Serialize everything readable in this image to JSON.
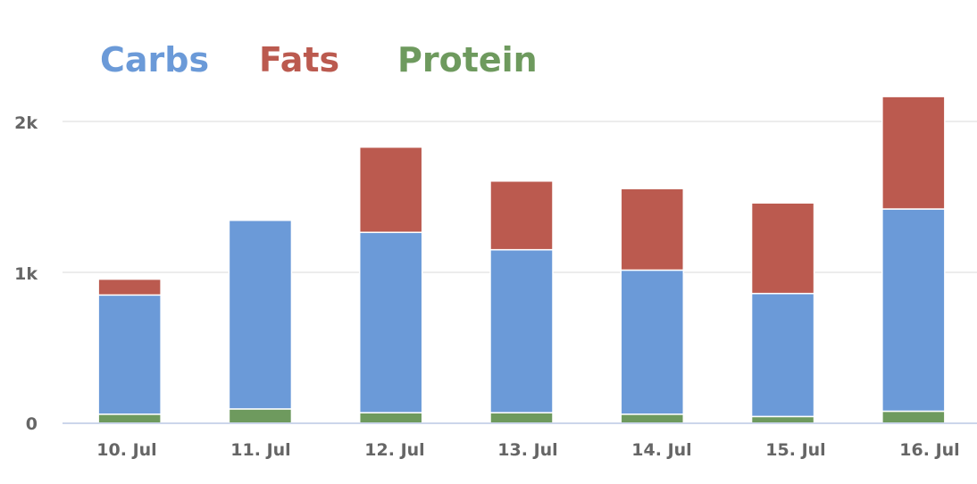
{
  "chart_data": {
    "type": "bar",
    "stacked": true,
    "categories": [
      "10. Jul",
      "11. Jul",
      "12. Jul",
      "13. Jul",
      "14. Jul",
      "15. Jul",
      "16. Jul"
    ],
    "series": [
      {
        "name": "Protein",
        "color": "#6e9a5e",
        "values": [
          60,
          95,
          70,
          70,
          60,
          45,
          80
        ]
      },
      {
        "name": "Carbs",
        "color": "#6b9ad8",
        "values": [
          790,
          1250,
          1195,
          1080,
          955,
          815,
          1340
        ]
      },
      {
        "name": "Fats",
        "color": "#bb5a4f",
        "values": [
          105,
          0,
          565,
          455,
          540,
          600,
          745
        ]
      }
    ],
    "legend": [
      "Carbs",
      "Fats",
      "Protein"
    ],
    "legend_position": "top-left",
    "yticks": [
      0,
      1000,
      2000
    ],
    "ytick_labels": [
      "0",
      "1k",
      "2k"
    ],
    "ylim": [
      0,
      2200
    ],
    "grid": true
  }
}
